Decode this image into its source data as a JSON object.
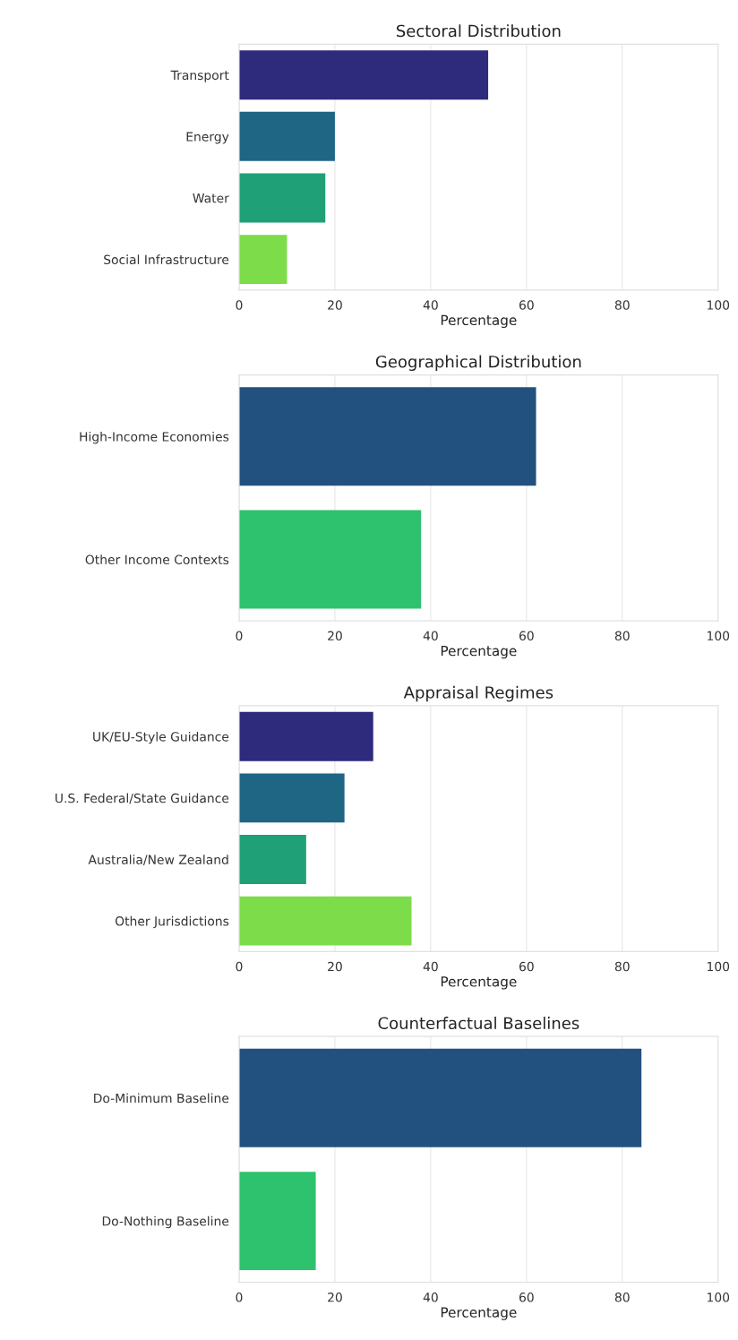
{
  "chart_data": [
    {
      "type": "bar",
      "orientation": "horizontal",
      "title": "Sectoral Distribution",
      "xlabel": "Percentage",
      "categories": [
        "Transport",
        "Energy",
        "Water",
        "Social Infrastructure"
      ],
      "values": [
        52,
        20,
        18,
        10
      ],
      "colors": [
        "#2e2b7c",
        "#1f6685",
        "#1fa077",
        "#7cdc4a"
      ],
      "xlim": [
        0,
        100
      ],
      "xticks": [
        0,
        20,
        40,
        60,
        80,
        100
      ],
      "grid": "x"
    },
    {
      "type": "bar",
      "orientation": "horizontal",
      "title": "Geographical Distribution",
      "xlabel": "Percentage",
      "categories": [
        "High-Income Economies",
        "Other Income Contexts"
      ],
      "values": [
        62,
        38
      ],
      "colors": [
        "#23517f",
        "#2ec26e"
      ],
      "xlim": [
        0,
        100
      ],
      "xticks": [
        0,
        20,
        40,
        60,
        80,
        100
      ],
      "grid": "x"
    },
    {
      "type": "bar",
      "orientation": "horizontal",
      "title": "Appraisal Regimes",
      "xlabel": "Percentage",
      "categories": [
        "UK/EU-Style Guidance",
        "U.S. Federal/State Guidance",
        "Australia/New Zealand",
        "Other Jurisdictions"
      ],
      "values": [
        28,
        22,
        14,
        36
      ],
      "colors": [
        "#2e2b7c",
        "#1f6685",
        "#1fa077",
        "#7cdc4a"
      ],
      "xlim": [
        0,
        100
      ],
      "xticks": [
        0,
        20,
        40,
        60,
        80,
        100
      ],
      "grid": "x"
    },
    {
      "type": "bar",
      "orientation": "horizontal",
      "title": "Counterfactual Baselines",
      "xlabel": "Percentage",
      "categories": [
        "Do-Minimum Baseline",
        "Do-Nothing Baseline"
      ],
      "values": [
        84,
        16
      ],
      "colors": [
        "#23517f",
        "#2ec26e"
      ],
      "xlim": [
        0,
        100
      ],
      "xticks": [
        0,
        20,
        40,
        60,
        80,
        100
      ],
      "grid": "x"
    }
  ]
}
